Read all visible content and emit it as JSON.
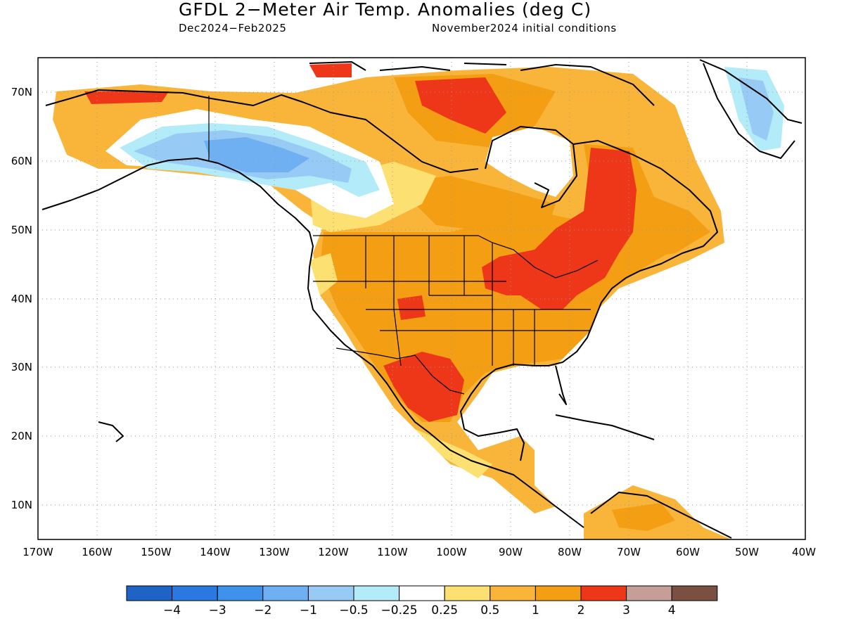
{
  "title": "GFDL 2−Meter Air Temp. Anomalies (deg C)",
  "period": "Dec2024−Feb2025",
  "initial_conditions": "November2024 initial conditions",
  "map": {
    "lon_range": [
      -170,
      -40
    ],
    "lat_range": [
      5,
      75
    ],
    "lon_ticks": [
      "170W",
      "160W",
      "150W",
      "140W",
      "130W",
      "120W",
      "110W",
      "100W",
      "90W",
      "80W",
      "70W",
      "60W",
      "50W",
      "40W"
    ],
    "lat_ticks": [
      "10N",
      "20N",
      "30N",
      "40N",
      "50N",
      "60N",
      "70N"
    ],
    "grid": true,
    "regions": [
      {
        "name": "Alaska / NW Canada",
        "anomaly_range": [
          -1,
          -0.5
        ]
      },
      {
        "name": "Western Arctic coast",
        "anomaly_range": [
          2,
          3
        ]
      },
      {
        "name": "Central & Eastern USA",
        "anomaly_range": [
          1,
          2
        ]
      },
      {
        "name": "Great Lakes / Quebec",
        "anomaly_range": [
          2,
          3
        ]
      },
      {
        "name": "Texas / Northern Mexico",
        "anomaly_range": [
          2,
          3
        ]
      },
      {
        "name": "Western Greenland",
        "anomaly_range": [
          -1,
          -0.5
        ]
      }
    ]
  },
  "colorbar": {
    "colors": [
      "#1f63c6",
      "#2b78e0",
      "#3f92ec",
      "#6eb0f2",
      "#97cbf5",
      "#b3ecf8",
      "#ffffff",
      "#fce172",
      "#f8b53a",
      "#f49e14",
      "#ee3718",
      "#c59e95",
      "#7a5042"
    ],
    "tick_labels": [
      "−4",
      "−3",
      "−2",
      "−1",
      "−0.5",
      "−0.25",
      "0.25",
      "0.5",
      "1",
      "2",
      "3",
      "4"
    ]
  }
}
